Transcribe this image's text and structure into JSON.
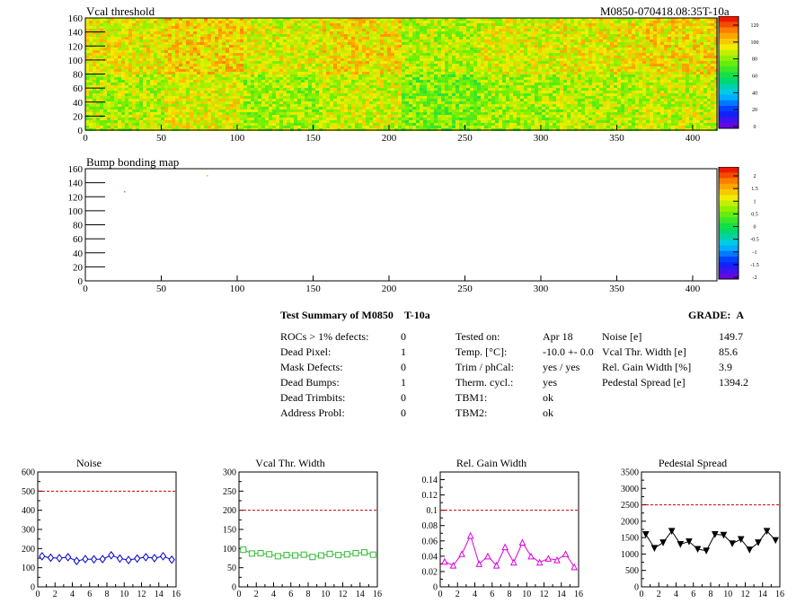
{
  "page": {
    "header_left": "Vcal threshold",
    "header_right": "M0850-070418.08:35T-10a"
  },
  "maps": [
    {
      "id": "vcal",
      "title": "Vcal threshold",
      "x_ticks": [
        0,
        50,
        100,
        150,
        200,
        250,
        300,
        350,
        400
      ],
      "xlim": [
        0,
        416
      ],
      "y_ticks": [
        0,
        20,
        40,
        60,
        80,
        100,
        120,
        140,
        160
      ],
      "ylim": [
        0,
        160
      ],
      "palette_ticks": [
        "120",
        "100",
        "80",
        "60",
        "40",
        "20",
        "0"
      ]
    },
    {
      "id": "bump",
      "title": "Bump bonding map",
      "x_ticks": [
        0,
        50,
        100,
        150,
        200,
        250,
        300,
        350,
        400
      ],
      "xlim": [
        0,
        416
      ],
      "y_ticks": [
        0,
        20,
        40,
        60,
        80,
        100,
        120,
        140,
        160
      ],
      "ylim": [
        0,
        160
      ],
      "palette_ticks": [
        "2",
        "1.5",
        "1",
        "0.5",
        "0",
        "-0.5",
        "-1",
        "-1.5",
        "-2"
      ]
    }
  ],
  "summary": {
    "title": "Test Summary of M0850",
    "temp_tag": "T-10a",
    "grade_label": "GRADE:",
    "grade": "A",
    "col1": [
      {
        "label": "ROCs > 1% defects:",
        "value": "0"
      },
      {
        "label": "Dead Pixel:",
        "value": "1"
      },
      {
        "label": "Mask Defects:",
        "value": "0"
      },
      {
        "label": "Dead Bumps:",
        "value": "1"
      },
      {
        "label": "Dead Trimbits:",
        "value": "0"
      },
      {
        "label": "Address Probl:",
        "value": "0"
      }
    ],
    "col2": [
      {
        "label": "Tested on:",
        "value": "Apr 18"
      },
      {
        "label": "Temp. [°C]:",
        "value": "-10.0 +- 0.0"
      },
      {
        "label": "Trim / phCal:",
        "value": "yes / yes"
      },
      {
        "label": "Therm. cycl.:",
        "value": "yes"
      },
      {
        "label": "TBM1:",
        "value": "ok"
      },
      {
        "label": "TBM2:",
        "value": "ok"
      }
    ],
    "col3": [
      {
        "label": "Noise [e]",
        "value": "149.7"
      },
      {
        "label": "Vcal Thr. Width [e]",
        "value": "85.6"
      },
      {
        "label": "Rel. Gain Width [%]",
        "value": "3.9"
      },
      {
        "label": "Pedestal Spread [e]",
        "value": "1394.2"
      }
    ]
  },
  "chart_data": [
    {
      "type": "line",
      "title": "Noise",
      "color": "#0000cc",
      "marker": "diamond",
      "x": [
        0,
        1,
        2,
        3,
        4,
        5,
        6,
        7,
        8,
        9,
        10,
        11,
        12,
        13,
        14,
        15
      ],
      "values": [
        160,
        152,
        150,
        155,
        135,
        145,
        144,
        145,
        165,
        148,
        140,
        148,
        155,
        150,
        160,
        142
      ],
      "xlim": [
        0,
        16
      ],
      "ylim": [
        0,
        600
      ],
      "x_ticks": [
        0,
        2,
        4,
        6,
        8,
        10,
        12,
        14,
        16
      ],
      "y_ticks": [
        0,
        100,
        200,
        300,
        400,
        500,
        600
      ],
      "threshold": 500,
      "threshold_color": "#cc0000"
    },
    {
      "type": "line",
      "title": "Vcal Thr. Width",
      "color": "#33bb33",
      "marker": "square",
      "x": [
        0,
        1,
        2,
        3,
        4,
        5,
        6,
        7,
        8,
        9,
        10,
        11,
        12,
        13,
        14,
        15
      ],
      "values": [
        97,
        87,
        88,
        85,
        80,
        83,
        82,
        84,
        78,
        82,
        86,
        83,
        85,
        88,
        90,
        84
      ],
      "xlim": [
        0,
        16
      ],
      "ylim": [
        0,
        300
      ],
      "x_ticks": [
        0,
        2,
        4,
        6,
        8,
        10,
        12,
        14,
        16
      ],
      "y_ticks": [
        0,
        50,
        100,
        150,
        200,
        250,
        300
      ],
      "threshold": 200,
      "threshold_color": "#cc0000"
    },
    {
      "type": "line",
      "title": "Rel. Gain Width",
      "color": "#dd00dd",
      "marker": "triangle",
      "x": [
        0,
        1,
        2,
        3,
        4,
        5,
        6,
        7,
        8,
        9,
        10,
        11,
        12,
        13,
        14,
        15
      ],
      "values": [
        0.033,
        0.028,
        0.043,
        0.067,
        0.03,
        0.04,
        0.028,
        0.052,
        0.032,
        0.058,
        0.04,
        0.032,
        0.037,
        0.035,
        0.043,
        0.026
      ],
      "xlim": [
        0,
        16
      ],
      "ylim": [
        0,
        0.15
      ],
      "x_ticks": [
        0,
        2,
        4,
        6,
        8,
        10,
        12,
        14,
        16
      ],
      "y_ticks": [
        0,
        0.02,
        0.04,
        0.06,
        0.08,
        0.1,
        0.12,
        0.14
      ],
      "threshold": 0.1,
      "threshold_color": "#cc0000"
    },
    {
      "type": "line",
      "title": "Pedestal Spread",
      "color": "#000000",
      "marker": "triangle-down",
      "x": [
        0,
        1,
        2,
        3,
        4,
        5,
        6,
        7,
        8,
        9,
        10,
        11,
        12,
        13,
        14,
        15
      ],
      "values": [
        1600,
        1180,
        1350,
        1700,
        1300,
        1380,
        1150,
        1100,
        1600,
        1580,
        1320,
        1450,
        1130,
        1350,
        1700,
        1420
      ],
      "xlim": [
        0,
        16
      ],
      "ylim": [
        0,
        3500
      ],
      "x_ticks": [
        0,
        2,
        4,
        6,
        8,
        10,
        12,
        14,
        16
      ],
      "y_ticks": [
        0,
        500,
        1000,
        1500,
        2000,
        2500,
        3000,
        3500
      ],
      "threshold": 2500,
      "threshold_color": "#cc0000"
    }
  ]
}
